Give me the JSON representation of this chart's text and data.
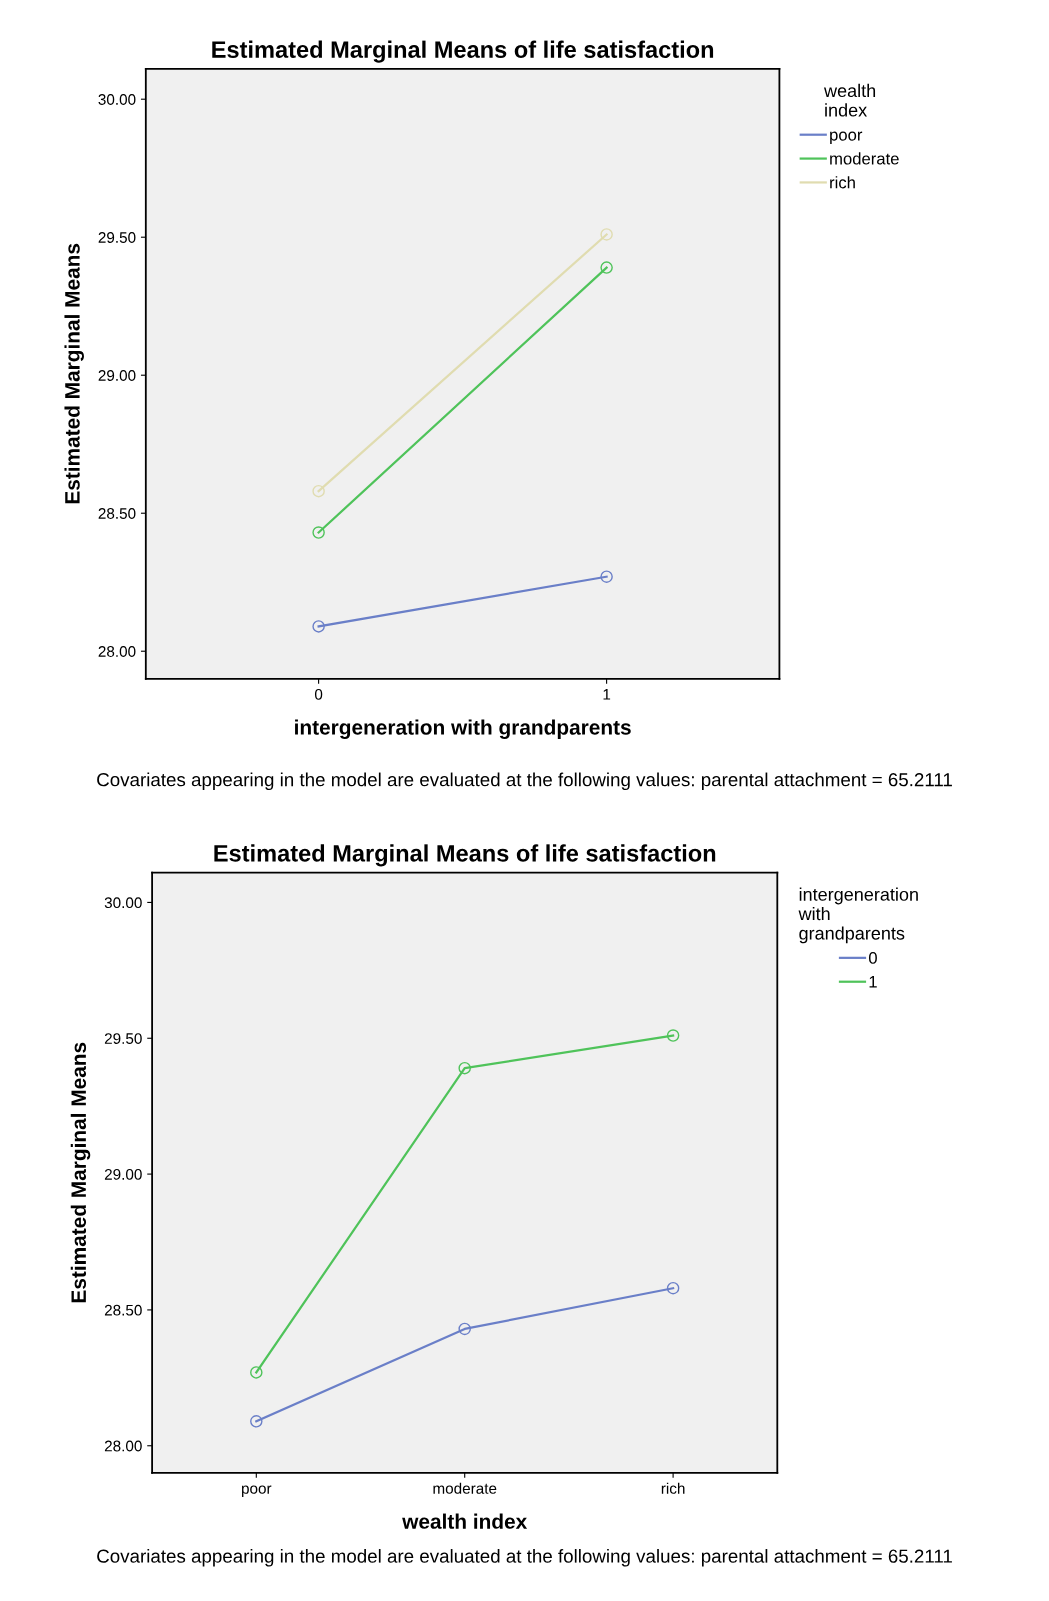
{
  "chart_data": [
    {
      "type": "line",
      "title": "Estimated Marginal Means of life satisfaction",
      "xlabel": "intergeneration with grandparents",
      "ylabel": "Estimated Marginal Means",
      "legend_title": "wealth\nindex",
      "legend": "right",
      "marker": "circle",
      "line_style": "solid",
      "grid": false,
      "x": [
        0,
        1
      ],
      "xlim": [
        -0.6,
        1.6
      ],
      "xticks": [
        0,
        1
      ],
      "ylim": [
        27.9,
        30.11
      ],
      "yticks": [
        {
          "value": 28,
          "label": "28.00"
        },
        {
          "value": 28.5,
          "label": "28.50"
        },
        {
          "value": 29,
          "label": "29.00"
        },
        {
          "value": 29.5,
          "label": "29.50"
        },
        {
          "value": 30,
          "label": "30.00"
        }
      ],
      "series": [
        {
          "name": "poor",
          "color": "#6a7fc8",
          "values": [
            28.09,
            28.27
          ]
        },
        {
          "name": "moderate",
          "color": "#4fc35a",
          "values": [
            28.43,
            29.39
          ]
        },
        {
          "name": "rich",
          "color": "#e0dcb0",
          "values": [
            28.58,
            29.51
          ]
        }
      ],
      "annotations": [
        "Covariates appearing in the model are evaluated at the following values: parental attachment = 65.2111"
      ]
    },
    {
      "type": "line",
      "title": "Estimated Marginal Means of life satisfaction",
      "xlabel": "wealth index",
      "ylabel": "Estimated Marginal Means",
      "legend_title": "intergeneration\nwith\ngrandparents",
      "legend": "right",
      "marker": "circle",
      "line_style": "solid",
      "grid": false,
      "categories": [
        "poor",
        "moderate",
        "rich"
      ],
      "ylim": [
        27.9,
        30.11
      ],
      "yticks": [
        {
          "value": 28,
          "label": "28.00"
        },
        {
          "value": 28.5,
          "label": "28.50"
        },
        {
          "value": 29,
          "label": "29.00"
        },
        {
          "value": 29.5,
          "label": "29.50"
        },
        {
          "value": 30,
          "label": "30.00"
        }
      ],
      "series": [
        {
          "name": "0",
          "color": "#6a7fc8",
          "values": [
            28.09,
            28.43,
            28.58
          ]
        },
        {
          "name": "1",
          "color": "#4fc35a",
          "values": [
            28.27,
            29.39,
            29.51
          ]
        }
      ],
      "annotations": [
        "Covariates appearing in the model are evaluated at the following values: parental attachment = 65.2111"
      ]
    }
  ]
}
